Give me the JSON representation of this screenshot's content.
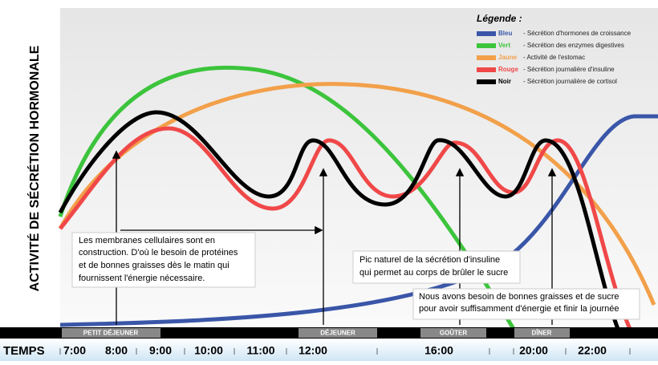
{
  "y_axis_title": "ACTIVITÉ DE SÉCRÉTION HORMONALE",
  "legend": {
    "title": "Légende :",
    "items": [
      {
        "name": "Bleu",
        "label": "- Sécrétion d'hormones de croissance",
        "color": "#3a56a8"
      },
      {
        "name": "Vert",
        "label": "- Sécrétion des enzymes digestives",
        "color": "#3cc43c"
      },
      {
        "name": "Jaune",
        "label": "- Activité de l'estomac",
        "color": "#f2a04a"
      },
      {
        "name": "Rouge",
        "label": "- Sécrétion journalière d'insuline",
        "color": "#f04848"
      },
      {
        "name": "Noir",
        "label": "- Sécrétion journalière de cortisol",
        "color": "#000000"
      }
    ]
  },
  "annotations": [
    [
      "Les membranes cellulaires sont en",
      "construction. D'où le besoin de protéines",
      "et de bonnes graisses dès le matin qui",
      "fournissent l'énergie nécessaire."
    ],
    [
      "Pic naturel de la sécrétion d'insuline",
      "qui permet au corps de brûler le sucre"
    ],
    [
      "Nous avons besoin de bonnes graisses et de sucre",
      "pour avoir suffisamment d'énergie et finir la journée"
    ]
  ],
  "meals": [
    "PETIT DÉJEUNER",
    "DÉJEUNER",
    "GOÛTER",
    "DÎNER"
  ],
  "time_label": "TEMPS",
  "times": [
    "7:00",
    "8:00",
    "9:00",
    "10:00",
    "11:00",
    "12:00",
    "16:00",
    "20:00",
    "22:00"
  ]
}
